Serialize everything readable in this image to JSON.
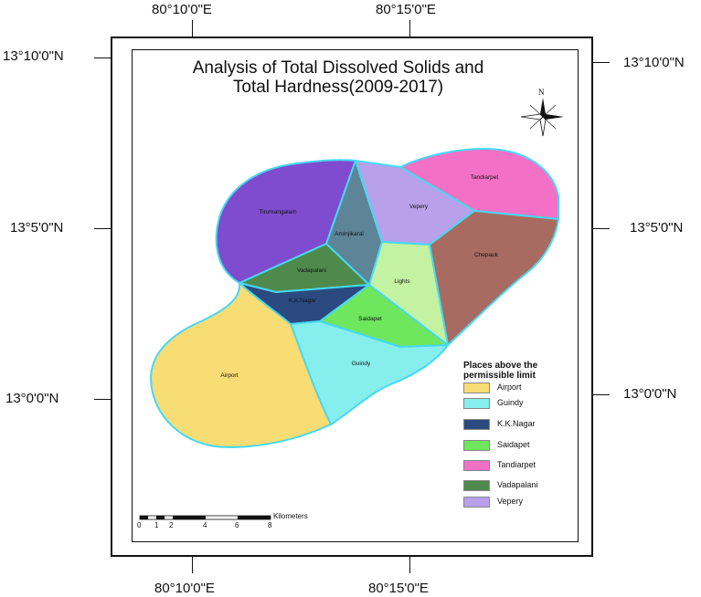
{
  "map": {
    "title_line1": "Analysis of Total Dissolved Solids and",
    "title_line2": "Total Hardness(2009-2017)",
    "north_label": "N",
    "grid": {
      "top_left_lon": "80°10'0\"E",
      "top_right_lon": "80°15'0\"E",
      "bottom_left_lon": "80°10'0\"E",
      "bottom_right_lon": "80°15'0\"E",
      "left_top_lat": "13°10'0\"N",
      "left_mid_lat": "13°5'0\"N",
      "left_bot_lat": "13°0'0\"N",
      "right_top_lat": "13°10'0\"N",
      "right_mid_lat": "13°5'0\"N",
      "right_bot_lat": "13°0'0\"N"
    },
    "regions": [
      {
        "name": "Tirumangalam",
        "color": "#7f4ccf"
      },
      {
        "name": "Aminjikarai",
        "color": "#5e8498"
      },
      {
        "name": "Vepery",
        "color": "#b8a0ea"
      },
      {
        "name": "Tandiarpet",
        "color": "#f271c7"
      },
      {
        "name": "Chepauk",
        "color": "#a86b62"
      },
      {
        "name": "Lights",
        "color": "#c2f2a2"
      },
      {
        "name": "Vadapalani",
        "color": "#4f8a4d"
      },
      {
        "name": "K.K.Nagar",
        "color": "#2b4a80"
      },
      {
        "name": "Saidapet",
        "color": "#6ee65e"
      },
      {
        "name": "Guindy",
        "color": "#86eeec"
      },
      {
        "name": "Airport",
        "color": "#f8dc74"
      }
    ],
    "boundary_color": "#46d9f2",
    "legend": {
      "title": "Places above the permissible limit",
      "items": [
        {
          "label": "Airport",
          "color": "#f8dc74"
        },
        {
          "label": "Guindy",
          "color": "#86eeec"
        },
        {
          "label": "K.K.Nagar",
          "color": "#2b4a80"
        },
        {
          "label": "Saidapet",
          "color": "#6ee65e"
        },
        {
          "label": "Tandiarpet",
          "color": "#f271c7"
        },
        {
          "label": "Vadapalani",
          "color": "#4f8a4d"
        },
        {
          "label": "Vepery",
          "color": "#b8a0ea"
        }
      ]
    },
    "scale": {
      "ticks": [
        "0",
        "1",
        "2",
        "4",
        "6",
        "8"
      ],
      "unit": "Kilometers"
    }
  }
}
